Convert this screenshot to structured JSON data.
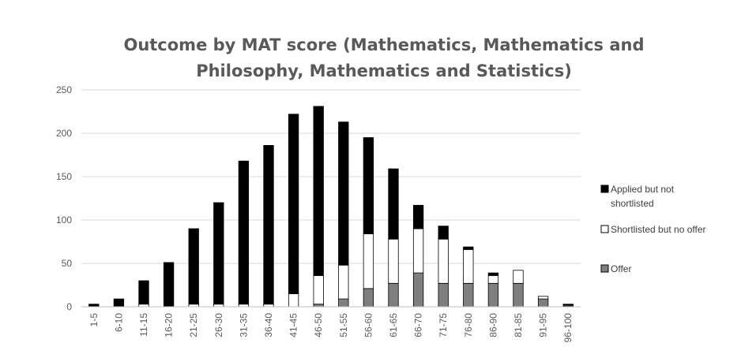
{
  "chart_data": {
    "type": "bar",
    "stacked": true,
    "title_line1": "Outcome by MAT score (Mathematics, Mathematics and",
    "title_line2": "Philosophy, Mathematics and Statistics)",
    "xlabel": "",
    "ylabel": "",
    "ylim": [
      0,
      250
    ],
    "yticks": [
      "0",
      "50",
      "100",
      "150",
      "200",
      "250"
    ],
    "grid": true,
    "legend_position": "right",
    "categories": [
      "1-5",
      "6-10",
      "11-15",
      "16-20",
      "21-25",
      "26-30",
      "31-35",
      "36-40",
      "41-45",
      "46-50",
      "51-55",
      "56-60",
      "61-65",
      "66-70",
      "71-75",
      "76-80",
      "86-90",
      "81-85",
      "91-95",
      "96-100"
    ],
    "series": [
      {
        "name": "Offer",
        "color": "#7f7f7f",
        "values": [
          0,
          0,
          0,
          0,
          0,
          0,
          0,
          0,
          0,
          3,
          9,
          21,
          27,
          39,
          27,
          27,
          27,
          27,
          9,
          1
        ]
      },
      {
        "name": "Shortlisted but no offer",
        "color": "#ffffff",
        "values": [
          0,
          0,
          3,
          0,
          3,
          3,
          3,
          3,
          15,
          33,
          39,
          63,
          51,
          51,
          51,
          39,
          9,
          15,
          3,
          1
        ]
      },
      {
        "name": "Applied but not shortlisted",
        "color": "#000000",
        "values": [
          3,
          9,
          27,
          51,
          87,
          117,
          165,
          183,
          207,
          195,
          165,
          111,
          81,
          27,
          15,
          3,
          3,
          0,
          0,
          1
        ]
      }
    ],
    "legend": {
      "applied_line1": "Applied but not",
      "applied_line2": "shortlisted",
      "shortlisted": "Shortlisted but no offer",
      "offer": "Offer"
    }
  }
}
